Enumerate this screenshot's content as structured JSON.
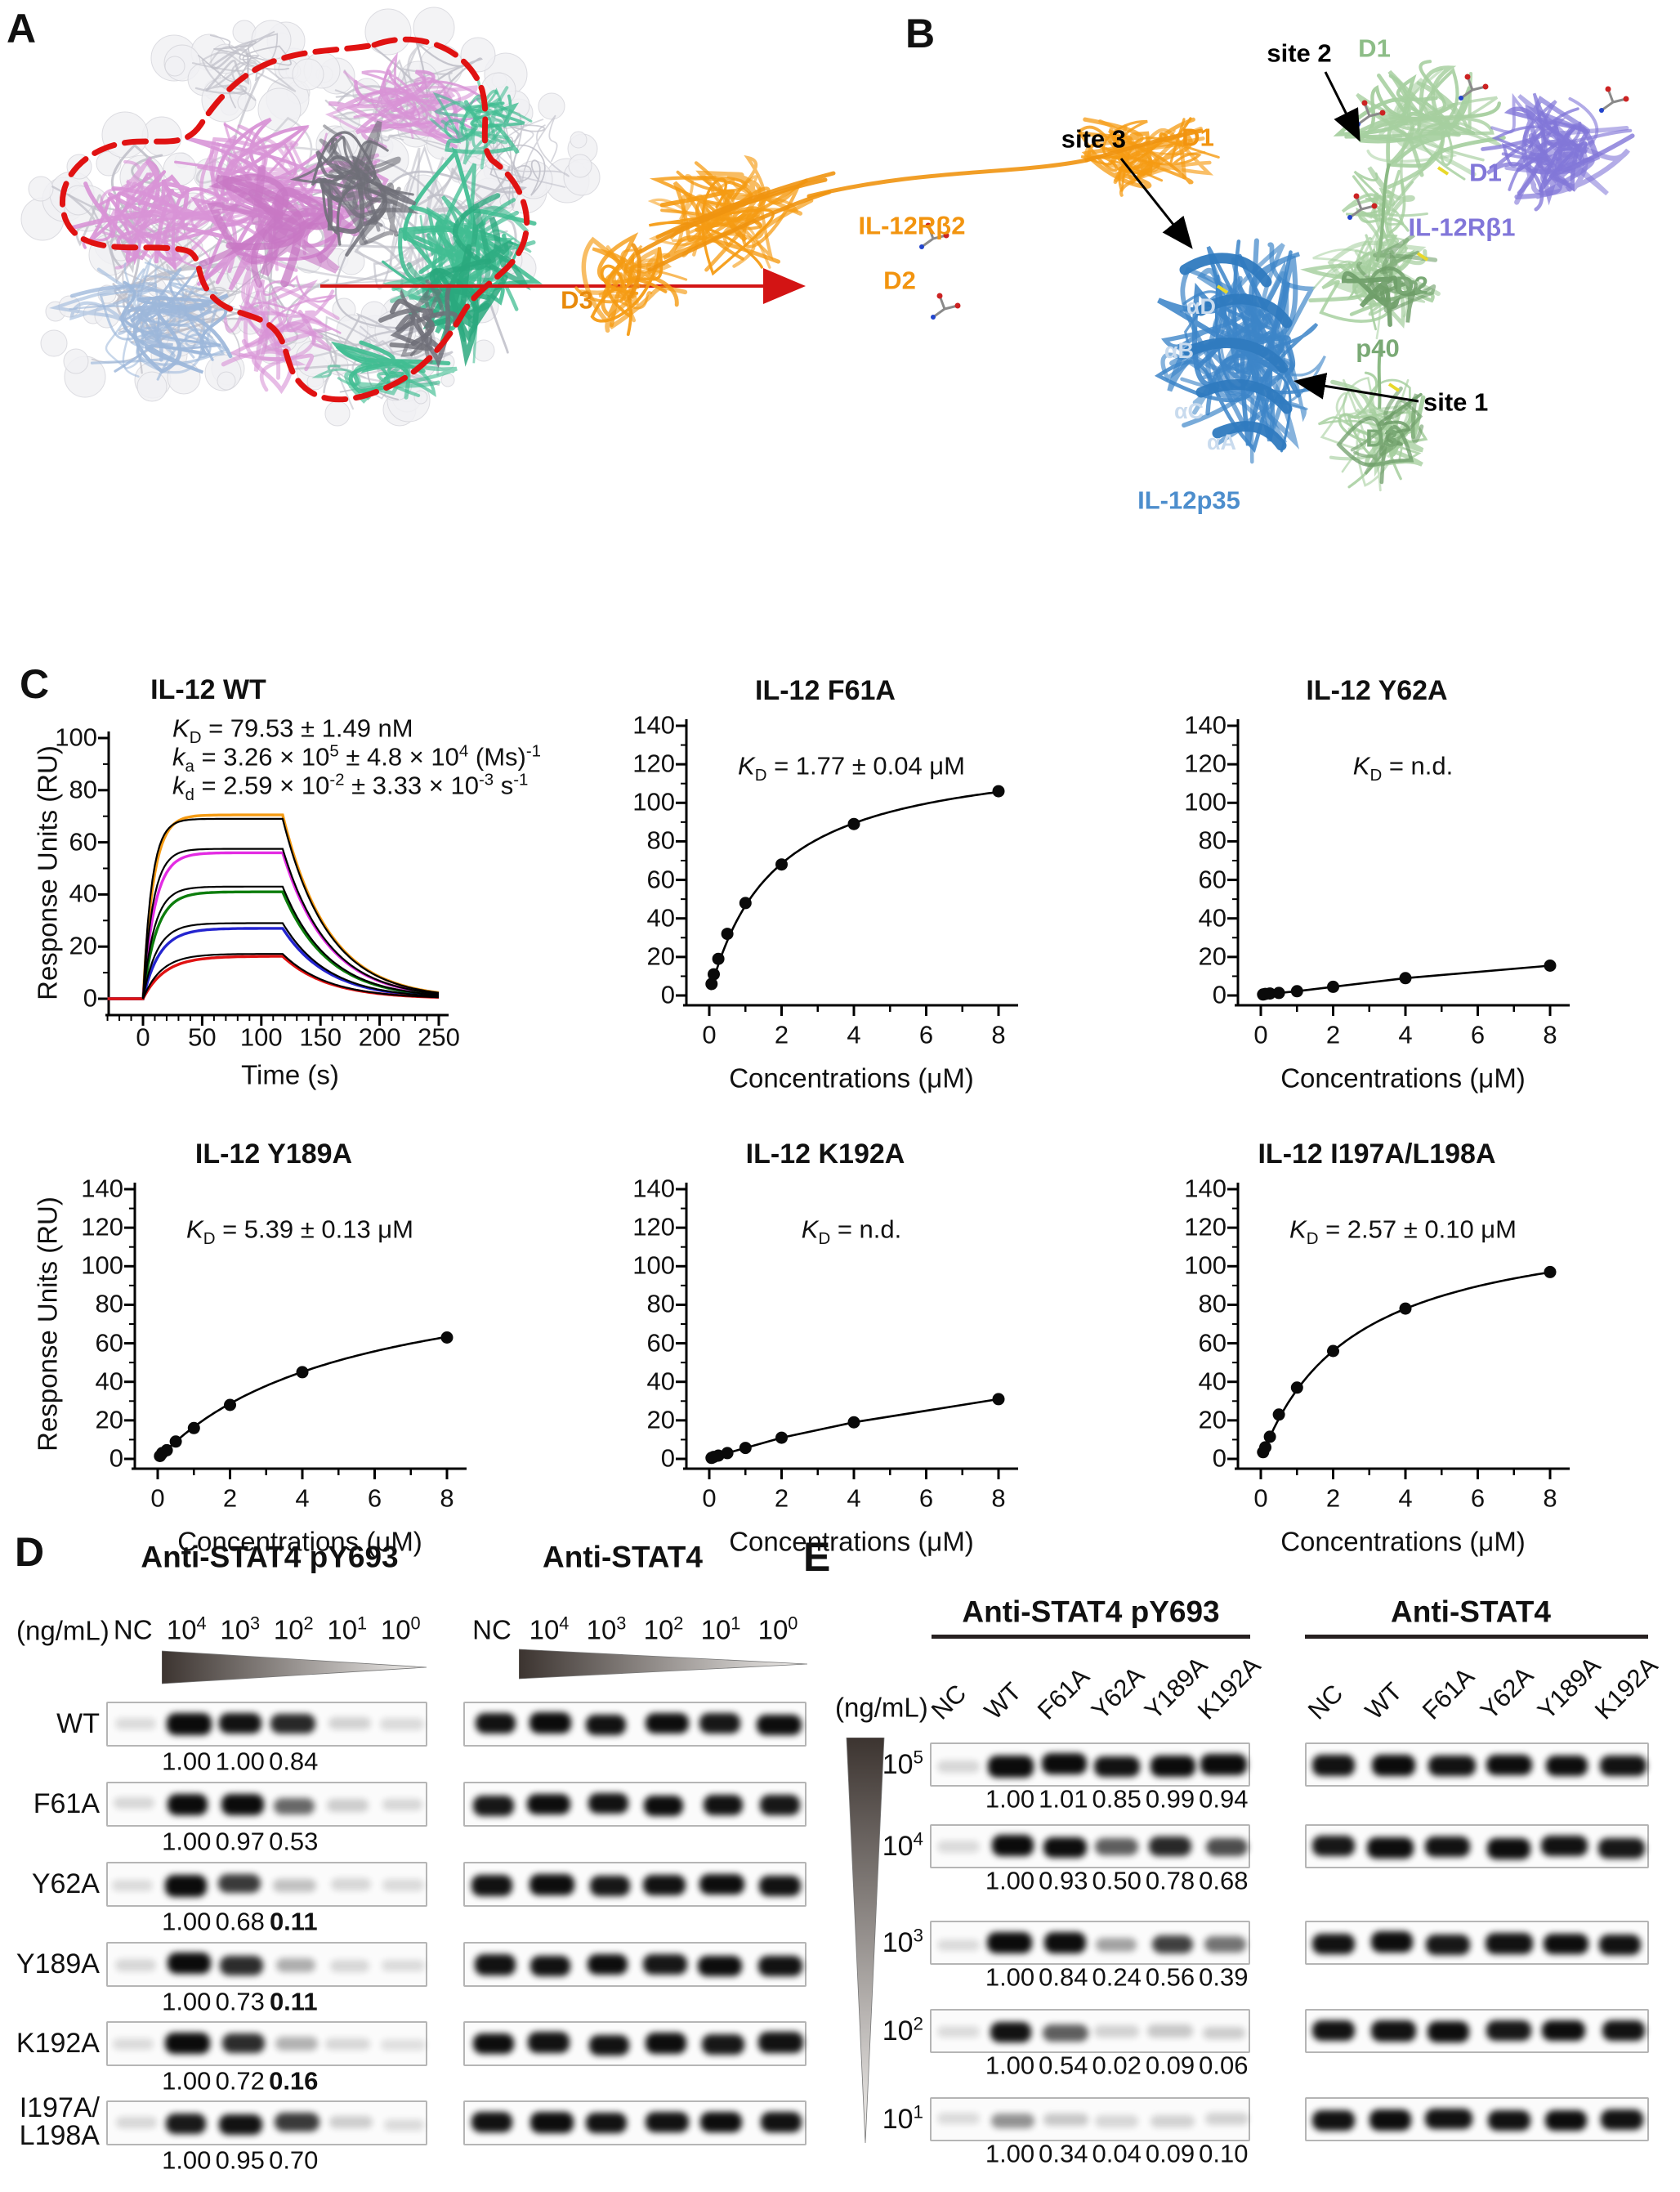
{
  "panel_a": {
    "label": "A"
  },
  "panel_b": {
    "label": "B",
    "labels": [
      {
        "id": "site-3",
        "text": "site 3",
        "color": "#000000"
      },
      {
        "id": "d1-rb2",
        "text": "D1",
        "color": "#f2940f"
      },
      {
        "id": "site-2",
        "text": "site 2",
        "color": "#000000"
      },
      {
        "id": "d1-p40",
        "text": "D1",
        "color": "#8dbd87"
      },
      {
        "id": "d1-rb1",
        "text": "D1",
        "color": "#8176d9"
      },
      {
        "id": "il-12rb1",
        "text": "IL-12Rβ1",
        "color": "#8176d9"
      },
      {
        "id": "d2-p40",
        "text": "D2",
        "color": "#7aa975"
      },
      {
        "id": "p40",
        "text": "p40",
        "color": "#7aa975"
      },
      {
        "id": "site-1",
        "text": "site 1",
        "color": "#000000"
      },
      {
        "id": "d3-p40",
        "text": "D3",
        "color": "#7aa975"
      },
      {
        "id": "il-12p35",
        "text": "IL-12p35",
        "color": "#4d8ecd"
      },
      {
        "id": "alpha-d",
        "text": "αD",
        "color": "#c9dbee"
      },
      {
        "id": "alpha-b",
        "text": "αB",
        "color": "#c9dbee"
      },
      {
        "id": "alpha-c",
        "text": "αC",
        "color": "#c9dbee"
      },
      {
        "id": "alpha-a",
        "text": "αA",
        "color": "#c9dbee"
      },
      {
        "id": "il-12rb2",
        "text": "IL-12Rβ2",
        "color": "#f2940f"
      },
      {
        "id": "d2-rb2",
        "text": "D2",
        "color": "#f2940f"
      },
      {
        "id": "d3-rb2",
        "text": "D3",
        "color": "#e88a0c"
      }
    ]
  },
  "panel_c": {
    "label": "C"
  },
  "chart_data": [
    {
      "type": "line",
      "variant": "sensorgram",
      "title": "IL-12 WT",
      "xlabel": "Time (s)",
      "ylabel": "Response Units (RU)",
      "xlim": [
        -30,
        250
      ],
      "ylim": [
        0,
        100
      ],
      "xticks": [
        0,
        50,
        100,
        150,
        200,
        250
      ],
      "yticks": [
        0,
        20,
        40,
        60,
        80,
        100
      ],
      "annotation_lines": [
        "*K*_D_ = 79.53 ± 1.49 nM",
        "*k*_a_ = 3.26 × 10^5^ ± 4.8 × 10^4^ (Ms)^-1^",
        "*k*_d_ = 2.59 × 10^-2^ ± 3.33 × 10^-3^ s^-1^"
      ],
      "association_end_s": 118,
      "dissociation_rate": 0.0259,
      "fit_color": "#000000",
      "series": [
        {
          "name": "conc-highest",
          "color": "#f59b13",
          "plateau_ru": 70.5,
          "fit_plateau_ru": 69,
          "k_obs": 0.115
        },
        {
          "name": "conc-2",
          "color": "#e32be3",
          "plateau_ru": 56,
          "fit_plateau_ru": 57.5,
          "k_obs": 0.1
        },
        {
          "name": "conc-3",
          "color": "#0c7d0c",
          "plateau_ru": 41,
          "fit_plateau_ru": 43,
          "k_obs": 0.088
        },
        {
          "name": "conc-4",
          "color": "#2424cf",
          "plateau_ru": 27,
          "fit_plateau_ru": 29,
          "k_obs": 0.072
        },
        {
          "name": "conc-lowest",
          "color": "#e01212",
          "plateau_ru": 16.3,
          "fit_plateau_ru": 17.2,
          "k_obs": 0.055
        }
      ]
    },
    {
      "type": "scatter",
      "variant": "binding",
      "title": "IL-12 F61A",
      "xlabel": "Concentrations (μM)",
      "ylabel": "",
      "xlim": [
        0,
        8.6
      ],
      "ylim": [
        0,
        140
      ],
      "xticks": [
        0,
        2,
        4,
        6,
        8
      ],
      "yticks": [
        0,
        20,
        40,
        60,
        80,
        100,
        120,
        140
      ],
      "annotation_lines": [
        "*K*_D_ = 1.77 ± 0.04 μM"
      ],
      "x": [
        0.0625,
        0.125,
        0.25,
        0.5,
        1,
        2,
        4,
        8
      ],
      "y": [
        6,
        11,
        19,
        32,
        48,
        68,
        89,
        106
      ],
      "fit": {
        "kd_um": 1.77,
        "rmax_ru": 129
      }
    },
    {
      "type": "scatter",
      "variant": "binding",
      "title": "IL-12 Y62A",
      "xlabel": "Concentrations (μM)",
      "ylabel": "",
      "xlim": [
        0,
        8.6
      ],
      "ylim": [
        0,
        140
      ],
      "xticks": [
        0,
        2,
        4,
        6,
        8
      ],
      "yticks": [
        0,
        20,
        40,
        60,
        80,
        100,
        120,
        140
      ],
      "annotation_lines": [
        "*K*_D_ = n.d."
      ],
      "x": [
        0.0625,
        0.125,
        0.25,
        0.5,
        1,
        2,
        4,
        8
      ],
      "y": [
        0.5,
        0.8,
        1,
        1.3,
        2.2,
        4.5,
        9,
        15.5
      ],
      "fit": null
    },
    {
      "type": "scatter",
      "variant": "binding",
      "title": "IL-12 Y189A",
      "xlabel": "Concentrations (μM)",
      "ylabel": "Response Units (RU)",
      "xlim": [
        0,
        8.6
      ],
      "ylim": [
        0,
        140
      ],
      "xticks": [
        0,
        2,
        4,
        6,
        8
      ],
      "yticks": [
        0,
        20,
        40,
        60,
        80,
        100,
        120,
        140
      ],
      "annotation_lines": [
        "*K*_D_ = 5.39 ± 0.13 μM"
      ],
      "x": [
        0.0625,
        0.125,
        0.25,
        0.5,
        1,
        2,
        4,
        8
      ],
      "y": [
        1.5,
        3,
        4.5,
        9,
        16,
        28,
        45,
        63
      ],
      "fit": {
        "kd_um": 5.39,
        "rmax_ru": 106
      }
    },
    {
      "type": "scatter",
      "variant": "binding",
      "title": "IL-12 K192A",
      "xlabel": "Concentrations (μM)",
      "ylabel": "",
      "xlim": [
        0,
        8.6
      ],
      "ylim": [
        0,
        140
      ],
      "xticks": [
        0,
        2,
        4,
        6,
        8
      ],
      "yticks": [
        0,
        20,
        40,
        60,
        80,
        100,
        120,
        140
      ],
      "annotation_lines": [
        "*K*_D_ = n.d."
      ],
      "x": [
        0.0625,
        0.125,
        0.25,
        0.5,
        1,
        2,
        4,
        8
      ],
      "y": [
        0.5,
        1,
        1.7,
        3,
        5.7,
        11,
        19,
        31
      ],
      "fit": null
    },
    {
      "type": "scatter",
      "variant": "binding",
      "title": "IL-12 I197A/L198A",
      "xlabel": "Concentrations (μM)",
      "ylabel": "",
      "xlim": [
        0,
        8.6
      ],
      "ylim": [
        0,
        140
      ],
      "xticks": [
        0,
        2,
        4,
        6,
        8
      ],
      "yticks": [
        0,
        20,
        40,
        60,
        80,
        100,
        120,
        140
      ],
      "annotation_lines": [
        "*K*_D_ = 2.57 ± 0.10 μM"
      ],
      "x": [
        0.0625,
        0.125,
        0.25,
        0.5,
        1,
        2,
        4,
        8
      ],
      "y": [
        3.5,
        6,
        11.5,
        23,
        37,
        56,
        78,
        97
      ],
      "fit": {
        "kd_um": 2.57,
        "rmax_ru": 128
      }
    }
  ],
  "panel_d": {
    "label": "D",
    "unit_label": "(ng/mL)",
    "groups": [
      {
        "title": "Anti-STAT4 pY693"
      },
      {
        "title": "Anti-STAT4"
      }
    ],
    "lane_labels": [
      "NC",
      "10^4^",
      "10^3^",
      "10^2^",
      "10^1^",
      "10^0^"
    ],
    "rows": [
      {
        "name": "WT",
        "name_lines": [
          "WT"
        ],
        "values": [
          "1.00",
          "1.00",
          "0.84"
        ],
        "bold_values": [
          false,
          false,
          false
        ],
        "band_intensities": {
          "py693": [
            0.1,
            0.97,
            0.88,
            0.8,
            0.14,
            0.1
          ],
          "stat4": [
            0.88,
            0.92,
            0.88,
            0.9,
            0.86,
            0.9
          ]
        }
      },
      {
        "name": "F61A",
        "name_lines": [
          "F61A"
        ],
        "values": [
          "1.00",
          "0.97",
          "0.53"
        ],
        "bold_values": [
          false,
          false,
          false
        ],
        "band_intensities": {
          "py693": [
            0.12,
            0.93,
            0.93,
            0.55,
            0.16,
            0.12
          ],
          "stat4": [
            0.86,
            0.9,
            0.88,
            0.9,
            0.88,
            0.86
          ]
        }
      },
      {
        "name": "Y62A",
        "name_lines": [
          "Y62A"
        ],
        "values": [
          "1.00",
          "0.68",
          "0.11"
        ],
        "bold_values": [
          false,
          false,
          true
        ],
        "band_intensities": {
          "py693": [
            0.1,
            0.97,
            0.72,
            0.2,
            0.12,
            0.1
          ],
          "stat4": [
            0.88,
            0.9,
            0.86,
            0.88,
            0.9,
            0.88
          ]
        }
      },
      {
        "name": "Y189A",
        "name_lines": [
          "Y189A"
        ],
        "values": [
          "1.00",
          "0.73",
          "0.11"
        ],
        "bold_values": [
          false,
          false,
          true
        ],
        "band_intensities": {
          "py693": [
            0.12,
            0.92,
            0.78,
            0.28,
            0.12,
            0.1
          ],
          "stat4": [
            0.88,
            0.88,
            0.9,
            0.86,
            0.9,
            0.88
          ]
        }
      },
      {
        "name": "K192A",
        "name_lines": [
          "K192A"
        ],
        "values": [
          "1.00",
          "0.72",
          "0.16"
        ],
        "bold_values": [
          false,
          false,
          true
        ],
        "band_intensities": {
          "py693": [
            0.1,
            0.95,
            0.78,
            0.26,
            0.12,
            0.08
          ],
          "stat4": [
            0.9,
            0.88,
            0.88,
            0.9,
            0.86,
            0.88
          ]
        }
      },
      {
        "name": "I197A/L198A",
        "name_lines": [
          "I197A/",
          "L198A"
        ],
        "values": [
          "1.00",
          "0.95",
          "0.70"
        ],
        "bold_values": [
          false,
          false,
          false
        ],
        "band_intensities": {
          "py693": [
            0.12,
            0.85,
            0.88,
            0.72,
            0.16,
            0.1
          ],
          "stat4": [
            0.88,
            0.9,
            0.88,
            0.88,
            0.9,
            0.88
          ]
        }
      }
    ]
  },
  "panel_e": {
    "label": "E",
    "unit_label": "(ng/mL)",
    "groups": [
      {
        "title": "Anti-STAT4 pY693"
      },
      {
        "title": "Anti-STAT4"
      }
    ],
    "lane_labels": [
      "NC",
      "WT",
      "F61A",
      "Y62A",
      "Y189A",
      "K192A"
    ],
    "rows": [
      {
        "concentration": "10^5^",
        "values": [
          "1.00",
          "1.01",
          "0.85",
          "0.99",
          "0.94"
        ],
        "band_intensities": {
          "py693": [
            0.12,
            0.97,
            0.97,
            0.88,
            0.95,
            0.93
          ],
          "stat4": [
            0.88,
            0.92,
            0.88,
            0.9,
            0.9,
            0.88
          ]
        }
      },
      {
        "concentration": "10^4^",
        "values": [
          "1.00",
          "0.93",
          "0.50",
          "0.78",
          "0.68"
        ],
        "band_intensities": {
          "py693": [
            0.1,
            0.93,
            0.9,
            0.58,
            0.8,
            0.65
          ],
          "stat4": [
            0.86,
            0.9,
            0.88,
            0.9,
            0.88,
            0.86
          ]
        }
      },
      {
        "concentration": "10^3^",
        "values": [
          "1.00",
          "0.84",
          "0.24",
          "0.56",
          "0.39"
        ],
        "band_intensities": {
          "py693": [
            0.1,
            0.92,
            0.9,
            0.32,
            0.7,
            0.5
          ],
          "stat4": [
            0.88,
            0.9,
            0.86,
            0.88,
            0.9,
            0.88
          ]
        }
      },
      {
        "concentration": "10^2^",
        "values": [
          "1.00",
          "0.54",
          "0.02",
          "0.09",
          "0.06"
        ],
        "band_intensities": {
          "py693": [
            0.1,
            0.88,
            0.58,
            0.14,
            0.18,
            0.16
          ],
          "stat4": [
            0.88,
            0.88,
            0.9,
            0.86,
            0.9,
            0.88
          ]
        }
      },
      {
        "concentration": "10^1^",
        "values": [
          "1.00",
          "0.34",
          "0.04",
          "0.09",
          "0.10"
        ],
        "band_intensities": {
          "py693": [
            0.1,
            0.38,
            0.18,
            0.12,
            0.14,
            0.14
          ],
          "stat4": [
            0.88,
            0.9,
            0.88,
            0.88,
            0.9,
            0.88
          ]
        }
      }
    ]
  }
}
